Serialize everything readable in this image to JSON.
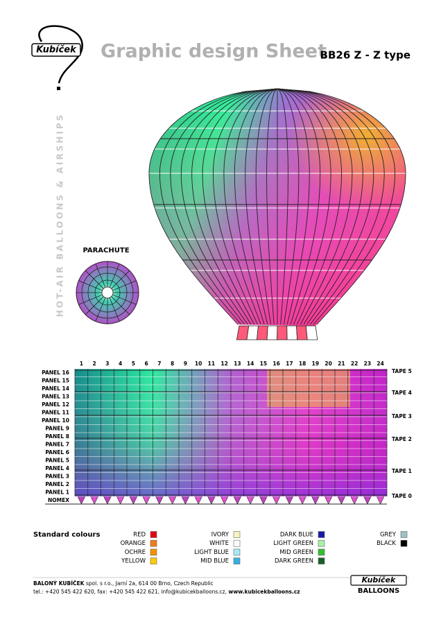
{
  "header": {
    "logo": "Kubíček",
    "title": "Graphic design Sheet",
    "model": "BB26 Z - Z type"
  },
  "side_text": "HOT-AIR BALLOONS & AIRSHIPS",
  "parachute_label": "PARACHUTE",
  "grid": {
    "columns": [
      1,
      2,
      3,
      4,
      5,
      6,
      7,
      8,
      9,
      10,
      11,
      12,
      13,
      14,
      15,
      16,
      17,
      18,
      19,
      20,
      21,
      22,
      23,
      24
    ],
    "rows": [
      "PANEL 16",
      "PANEL 15",
      "PANEL 14",
      "PANEL 13",
      "PANEL 12",
      "PANEL 11",
      "PANEL 10",
      "PANEL 9",
      "PANEL 8",
      "PANEL 7",
      "PANEL 6",
      "PANEL 5",
      "PANEL 4",
      "PANEL 3",
      "PANEL 2",
      "PANEL 1",
      "NOMEX"
    ],
    "tapes": [
      "TAPE 5",
      "TAPE 4",
      "TAPE 3",
      "TAPE 2",
      "TAPE 1",
      "TAPE 0"
    ]
  },
  "colours": {
    "title": "Standard colours",
    "columns": [
      [
        {
          "name": "RED",
          "color": "#e30613"
        },
        {
          "name": "ORANGE",
          "color": "#f07d1a"
        },
        {
          "name": "OCHRE",
          "color": "#f39200"
        },
        {
          "name": "YELLOW",
          "color": "#ffcc00"
        }
      ],
      [
        {
          "name": "IVORY",
          "color": "#f8f4c0"
        },
        {
          "name": "WHITE",
          "color": "#ffffff"
        },
        {
          "name": "LIGHT BLUE",
          "color": "#a8e8f4"
        },
        {
          "name": "MID BLUE",
          "color": "#3aaee0"
        }
      ],
      [
        {
          "name": "DARK BLUE",
          "color": "#1a1aa8"
        },
        {
          "name": "LIGHT GREEN",
          "color": "#a8f0a8"
        },
        {
          "name": "MID GREEN",
          "color": "#2fc02f"
        },
        {
          "name": "DARK GREEN",
          "color": "#1a5e2a"
        }
      ],
      [
        {
          "name": "GREY",
          "color": "#9fc0c4"
        },
        {
          "name": "BLACK",
          "color": "#000000"
        }
      ]
    ]
  },
  "footer": {
    "company": "BALONÝ KUBÍČEK",
    "address": " spol. s r.o., Jarní 2a, 614 00 Brno, Czech Republic",
    "contact": "tel.: +420 545 422 620, fax: +420 545 422 621, info@kubicekballoons.cz, ",
    "web": "www.kubicekballoons.cz",
    "logo": "Kubíček",
    "logo_sub": "BALLOONS"
  }
}
